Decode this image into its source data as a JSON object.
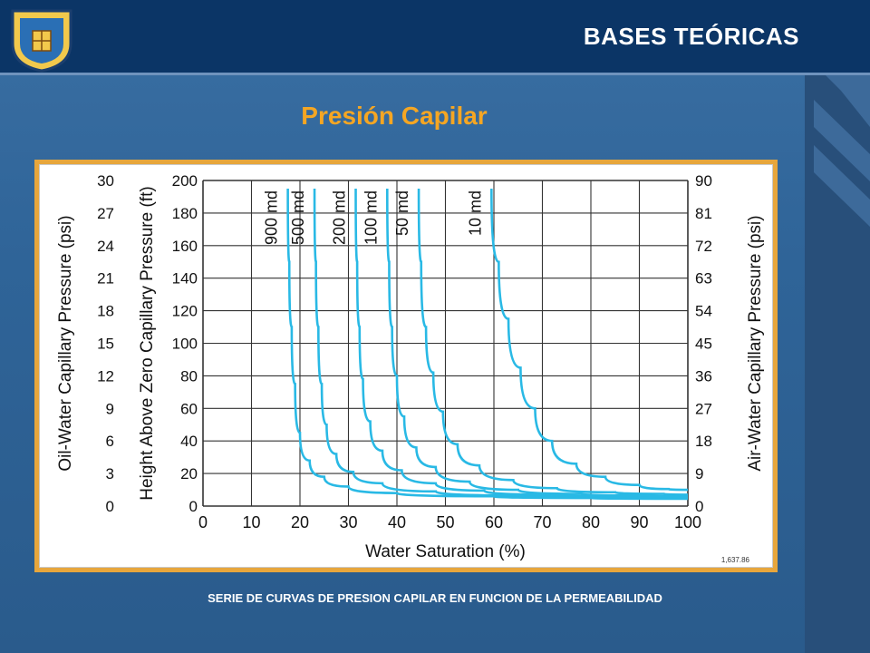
{
  "header": {
    "title": "BASES TEÓRICAS"
  },
  "subtitle": "Presión Capilar",
  "caption": "SERIE DE CURVAS DE PRESION CAPILAR EN FUNCION DE LA PERMEABILIDAD",
  "colors": {
    "header_bg": "#0b3566",
    "accent": "#f5a623",
    "curve": "#29b9e5",
    "frame": "#e7a63c"
  },
  "chart_data": {
    "type": "line",
    "title": "",
    "xlabel": "Water Saturation (%)",
    "ylabel": "Height Above Zero Capillary Pressure (ft)",
    "ylabel_left_outer": "Oil-Water Capillary Pressure (psi)",
    "ylabel_right": "Air-Water Capillary Pressure (psi)",
    "xlim": [
      0,
      100
    ],
    "ylim": [
      0,
      200
    ],
    "x_ticks": [
      "0",
      "10",
      "20",
      "30",
      "40",
      "50",
      "60",
      "70",
      "80",
      "90",
      "100"
    ],
    "y_ticks_ft": [
      "0",
      "20",
      "40",
      "60",
      "80",
      "100",
      "120",
      "140",
      "160",
      "180",
      "200"
    ],
    "y_ticks_oil_psi": [
      "0",
      "3",
      "6",
      "9",
      "12",
      "15",
      "18",
      "21",
      "24",
      "27",
      "30"
    ],
    "y_ticks_air_psi": [
      "0",
      "9",
      "18",
      "27",
      "36",
      "45",
      "54",
      "63",
      "72",
      "81",
      "90"
    ],
    "grid": true,
    "footnote": "1,637.86",
    "series": [
      {
        "name": "900 md",
        "x": [
          17.5,
          17.8,
          18.3,
          19,
          20,
          22,
          25,
          30,
          40,
          60,
          80,
          100
        ],
        "y": [
          195,
          150,
          110,
          75,
          45,
          28,
          18,
          12,
          8,
          6,
          5,
          4.5
        ]
      },
      {
        "name": "500 md",
        "x": [
          23,
          23.3,
          23.8,
          24.5,
          25.5,
          27.5,
          31,
          37,
          48,
          65,
          85,
          100
        ],
        "y": [
          195,
          150,
          110,
          75,
          50,
          32,
          21,
          14,
          9,
          6.5,
          5.5,
          5
        ]
      },
      {
        "name": "200 md",
        "x": [
          31.5,
          31.8,
          32.3,
          33,
          34.5,
          37,
          41,
          48,
          58,
          72,
          88,
          100
        ],
        "y": [
          195,
          150,
          110,
          78,
          52,
          34,
          22,
          14,
          9.5,
          7,
          6,
          5.5
        ]
      },
      {
        "name": "100 md",
        "x": [
          38,
          38.4,
          39,
          40,
          41.5,
          44,
          48,
          55,
          65,
          78,
          92,
          100
        ],
        "y": [
          195,
          150,
          110,
          80,
          55,
          36,
          24,
          15,
          10,
          7.5,
          6.5,
          6
        ]
      },
      {
        "name": "50 md",
        "x": [
          44.5,
          45,
          46,
          47.5,
          49.5,
          52.5,
          57,
          64,
          73,
          85,
          95,
          100
        ],
        "y": [
          195,
          150,
          110,
          82,
          58,
          38,
          25,
          16,
          11,
          8.5,
          7.5,
          7
        ]
      },
      {
        "name": "10 md",
        "x": [
          59.5,
          61,
          63,
          65.5,
          68.5,
          72,
          77,
          83,
          90,
          96,
          100
        ],
        "y": [
          195,
          150,
          115,
          85,
          60,
          40,
          26,
          18,
          13,
          10.5,
          10
        ]
      }
    ]
  }
}
